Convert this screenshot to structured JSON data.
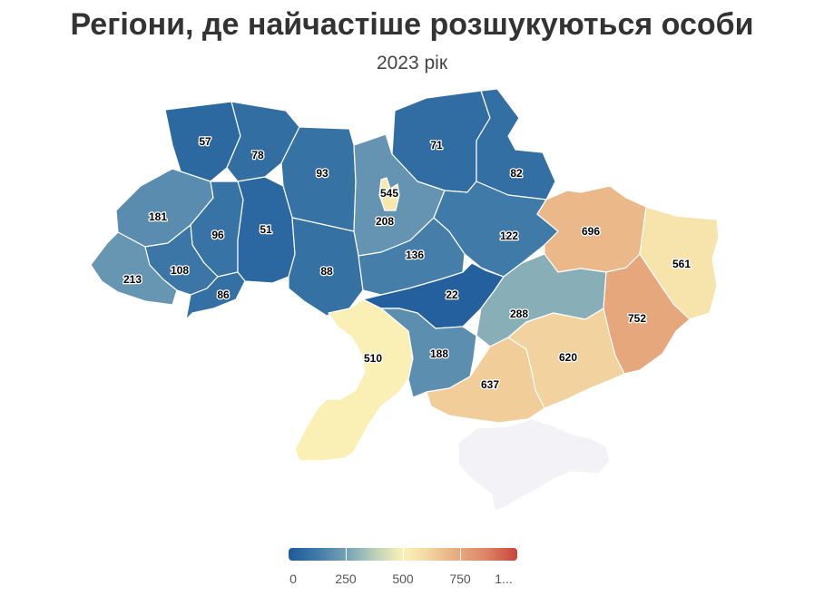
{
  "title": "Регіони, де найчастіше розшукуються особи",
  "subtitle": "2023 рік",
  "legend": {
    "labels": [
      "0",
      "250",
      "500",
      "750",
      "1..."
    ],
    "min": 0,
    "max": 1000
  },
  "colors": {
    "low": "#1d5a9a",
    "mid": "#fbf2b8",
    "high": "#c9453c",
    "no_data": "#f2f2f7"
  },
  "regions": [
    {
      "id": "volyn",
      "value": 57,
      "label": "57"
    },
    {
      "id": "rivne",
      "value": 78,
      "label": "78"
    },
    {
      "id": "zhytomyr",
      "value": 93,
      "label": "93"
    },
    {
      "id": "chernihiv",
      "value": 71,
      "label": "71"
    },
    {
      "id": "sumy",
      "value": 82,
      "label": "82"
    },
    {
      "id": "kyiv-city",
      "value": 545,
      "label": "545"
    },
    {
      "id": "kyiv-oblast",
      "value": 208,
      "label": "208"
    },
    {
      "id": "lviv",
      "value": 181,
      "label": "181"
    },
    {
      "id": "ternopil",
      "value": 96,
      "label": "96"
    },
    {
      "id": "khmelnytskyi",
      "value": 51,
      "label": "51"
    },
    {
      "id": "vinnytsia",
      "value": 88,
      "label": "88"
    },
    {
      "id": "cherkasy",
      "value": 136,
      "label": "136"
    },
    {
      "id": "poltava",
      "value": 122,
      "label": "122"
    },
    {
      "id": "kharkiv",
      "value": 696,
      "label": "696"
    },
    {
      "id": "luhansk",
      "value": 561,
      "label": "561"
    },
    {
      "id": "zakarpattia",
      "value": 213,
      "label": "213"
    },
    {
      "id": "ivano-frankivsk",
      "value": 108,
      "label": "108"
    },
    {
      "id": "chernivtsi",
      "value": 86,
      "label": "86"
    },
    {
      "id": "kirovohrad",
      "value": 22,
      "label": "22"
    },
    {
      "id": "dnipropetrovsk",
      "value": 288,
      "label": "288"
    },
    {
      "id": "donetsk",
      "value": 752,
      "label": "752"
    },
    {
      "id": "odesa",
      "value": 510,
      "label": "510"
    },
    {
      "id": "mykolaiv",
      "value": 188,
      "label": "188"
    },
    {
      "id": "kherson",
      "value": 637,
      "label": "637"
    },
    {
      "id": "zaporizhzhia",
      "value": 620,
      "label": "620"
    }
  ]
}
